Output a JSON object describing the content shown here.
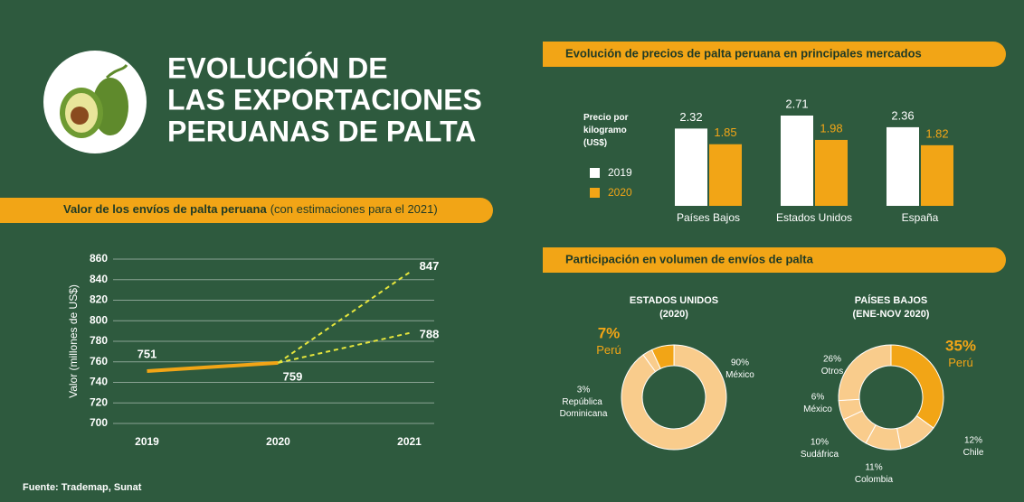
{
  "title": [
    "EVOLUCIÓN DE",
    "LAS EXPORTACIONES",
    "PERUANAS DE PALTA"
  ],
  "source": "Fuente: Trademap, Sunat",
  "chart_data": [
    {
      "type": "line",
      "title": "Valor de los envíos de palta peruana",
      "subtitle": "(con estimaciones para el 2021)",
      "ylabel": "Valor (millones de US$)",
      "categories": [
        "2019",
        "2020",
        "2021"
      ],
      "ylim": [
        700,
        860
      ],
      "yticks": [
        700,
        720,
        740,
        760,
        780,
        800,
        820,
        840,
        860
      ],
      "grid": true,
      "series": [
        {
          "color": "#f2a516",
          "dashed": false,
          "values": [
            751,
            759,
            null
          ]
        },
        {
          "color": "#e6e63c",
          "dashed": true,
          "values": [
            null,
            759,
            847
          ]
        },
        {
          "color": "#e6e63c",
          "dashed": true,
          "values": [
            null,
            759,
            788
          ]
        }
      ]
    },
    {
      "type": "bar",
      "title": "Evolución de precios de palta peruana en principales mercados",
      "ylabel": "Precio por kilogramo (US$)",
      "categories": [
        "Países Bajos",
        "Estados Unidos",
        "España"
      ],
      "series": [
        {
          "name": "2019",
          "color": "#ffffff",
          "values": [
            2.32,
            2.71,
            2.36
          ]
        },
        {
          "name": "2020",
          "color": "#f2a516",
          "values": [
            1.85,
            1.98,
            1.82
          ]
        }
      ]
    },
    {
      "type": "pie",
      "donut": true,
      "heading": "Participación en volumen de envíos de palta",
      "title": "ESTADOS UNIDOS",
      "subtitle": "(2020)",
      "labels": [
        "Perú",
        "México",
        "República Dominicana"
      ],
      "values": [
        7,
        90,
        3
      ],
      "value_labels": [
        "7%",
        "90%",
        "3%"
      ],
      "colors": [
        "#f2a516",
        "#f9cc8c",
        "#f9cc8c"
      ]
    },
    {
      "type": "pie",
      "donut": true,
      "title": "PAÍSES BAJOS",
      "subtitle": "(ENE-NOV 2020)",
      "labels": [
        "Perú",
        "Chile",
        "Colombia",
        "Sudáfrica",
        "México",
        "Otros"
      ],
      "values": [
        35,
        12,
        11,
        10,
        6,
        26
      ],
      "value_labels": [
        "35%",
        "12%",
        "11%",
        "10%",
        "6%",
        "26%"
      ],
      "colors": [
        "#f2a516",
        "#f9cc8c",
        "#f9cc8c",
        "#f9cc8c",
        "#f9cc8c",
        "#f9cc8c"
      ]
    }
  ]
}
